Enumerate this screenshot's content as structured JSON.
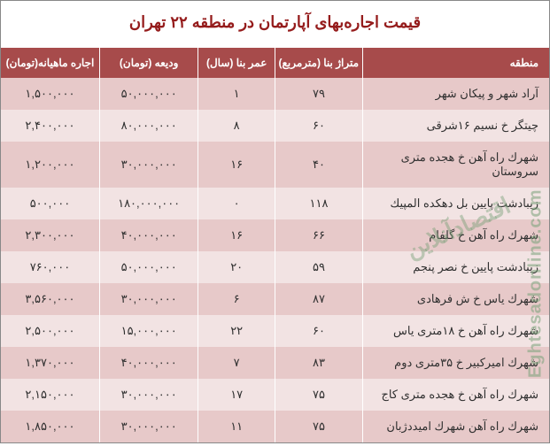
{
  "title": "قیمت اجاره‌بهای آپارتمان در منطقه ۲۲ تهران",
  "title_fontsize": 18,
  "title_color": "#951c1c",
  "colors": {
    "header_bg": "#a74b4b",
    "header_fg": "#ffffff",
    "row_even": "#e7c9c9",
    "row_odd": "#f2e3e3",
    "text": "#303030",
    "border": "#ffffff"
  },
  "columns": [
    {
      "key": "region",
      "label": "منطقه"
    },
    {
      "key": "area",
      "label": "متراژ بنا (مترمربع)"
    },
    {
      "key": "age",
      "label": "عمر بنا (سال)"
    },
    {
      "key": "deposit",
      "label": "ودیعه (تومان)"
    },
    {
      "key": "rent",
      "label": "اجاره ماهیانه(تومان)"
    }
  ],
  "rows": [
    {
      "region": "آراد شهر و پیکان شهر",
      "area": "۷۹",
      "age": "۱",
      "deposit": "۵۰,۰۰۰,۰۰۰",
      "rent": "۱,۵۰۰,۰۰۰"
    },
    {
      "region": "چیتگر خ نسیم ۱۶شرقی",
      "area": "۶۰",
      "age": "۸",
      "deposit": "۸۰,۰۰۰,۰۰۰",
      "rent": "۲,۴۰۰,۰۰۰"
    },
    {
      "region": "شهرك راه آهن خ هجده متری سروستان",
      "area": "۴۰",
      "age": "۱۶",
      "deposit": "۳۰,۰۰۰,۰۰۰",
      "rent": "۱,۲۰۰,۰۰۰"
    },
    {
      "region": "زیبادشت پایین بل دهکده المپیك",
      "area": "۱۱۸",
      "age": "۰",
      "deposit": "۱۸۰,۰۰۰,۰۰۰",
      "rent": "۵۰۰,۰۰۰"
    },
    {
      "region": "شهرك راه آهن خ گلفام",
      "area": "۶۶",
      "age": "۱۶",
      "deposit": "۴۰,۰۰۰,۰۰۰",
      "rent": "۲,۳۰۰,۰۰۰"
    },
    {
      "region": "زیبادشت پایین خ نصر پنجم",
      "area": "۵۹",
      "age": "۲۰",
      "deposit": "۵۰,۰۰۰,۰۰۰",
      "rent": "۷۶۰,۰۰۰"
    },
    {
      "region": "شهرك یاس خ ش فرهادی",
      "area": "۸۷",
      "age": "۶",
      "deposit": "۳۰,۰۰۰,۰۰۰",
      "rent": "۳,۵۶۰,۰۰۰"
    },
    {
      "region": "شهرك راه آهن خ ۱۸متری یاس",
      "area": "۶۰",
      "age": "۲۲",
      "deposit": "۱۵,۰۰۰,۰۰۰",
      "rent": "۲,۵۰۰,۰۰۰"
    },
    {
      "region": "شهرك امیرکبیر  خ ۳۵متری دوم",
      "area": "۸۳",
      "age": "۷",
      "deposit": "۴۰,۰۰۰,۰۰۰",
      "rent": "۱,۳۷۰,۰۰۰"
    },
    {
      "region": "شهرك راه آهن خ هجده متری کاج",
      "area": "۷۵",
      "age": "۱۷",
      "deposit": "۳۰,۰۰۰,۰۰۰",
      "rent": "۲,۱۵۰,۰۰۰"
    },
    {
      "region": "شهرك راه آهن شهرك امیددژبان",
      "area": "۷۵",
      "age": "۱۱",
      "deposit": "۳۰,۰۰۰,۰۰۰",
      "rent": "۱,۸۵۰,۰۰۰"
    }
  ],
  "watermark_en": "Eghtesadonline.com",
  "watermark_fa": "اقتصادآنلاین",
  "cell_fontsize": 13,
  "header_fontsize": 12
}
